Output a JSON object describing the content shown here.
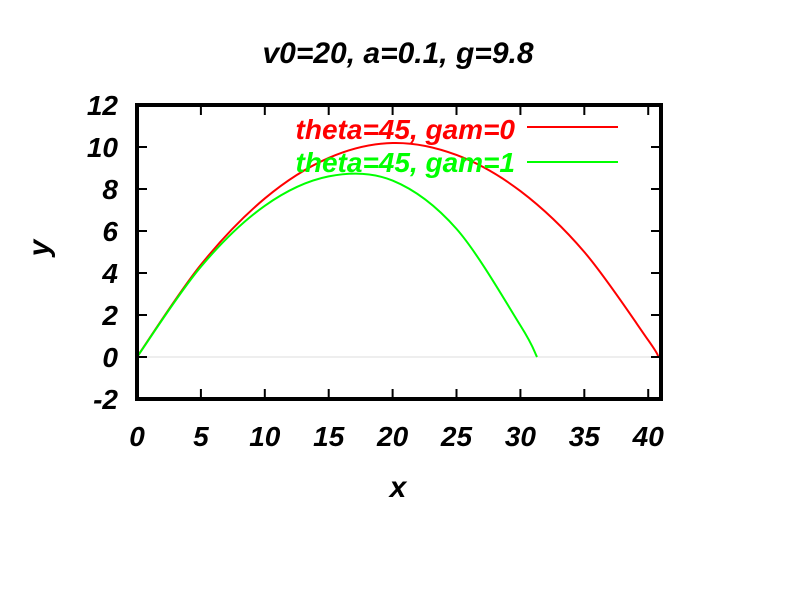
{
  "chart_data": {
    "type": "line",
    "title": "v0=20, a=0.1, g=9.8",
    "xlabel": "x",
    "ylabel": "y",
    "xlim": [
      0,
      41
    ],
    "ylim": [
      -2,
      12
    ],
    "xticks": [
      "0",
      "5",
      "10",
      "15",
      "20",
      "25",
      "30",
      "35",
      "40"
    ],
    "yticks": [
      "-2",
      "0",
      "2",
      "4",
      "6",
      "8",
      "10",
      "12"
    ],
    "grid": false,
    "legend_position": "top-right",
    "series": [
      {
        "name": "theta=45, gam=0",
        "color": "#ff0000",
        "x": [
          0,
          5,
          10,
          15,
          20,
          25,
          30,
          35,
          40,
          40.8
        ],
        "y": [
          0,
          4.39,
          7.55,
          9.48,
          10.19,
          9.62,
          7.9,
          5.0,
          0.8,
          0
        ]
      },
      {
        "name": "theta=45, gam=1",
        "color": "#00ff00",
        "x": [
          0,
          5,
          10,
          15,
          20,
          25,
          30,
          31.3
        ],
        "y": [
          0,
          4.3,
          7.2,
          8.6,
          8.4,
          6.1,
          1.5,
          0
        ]
      }
    ]
  }
}
